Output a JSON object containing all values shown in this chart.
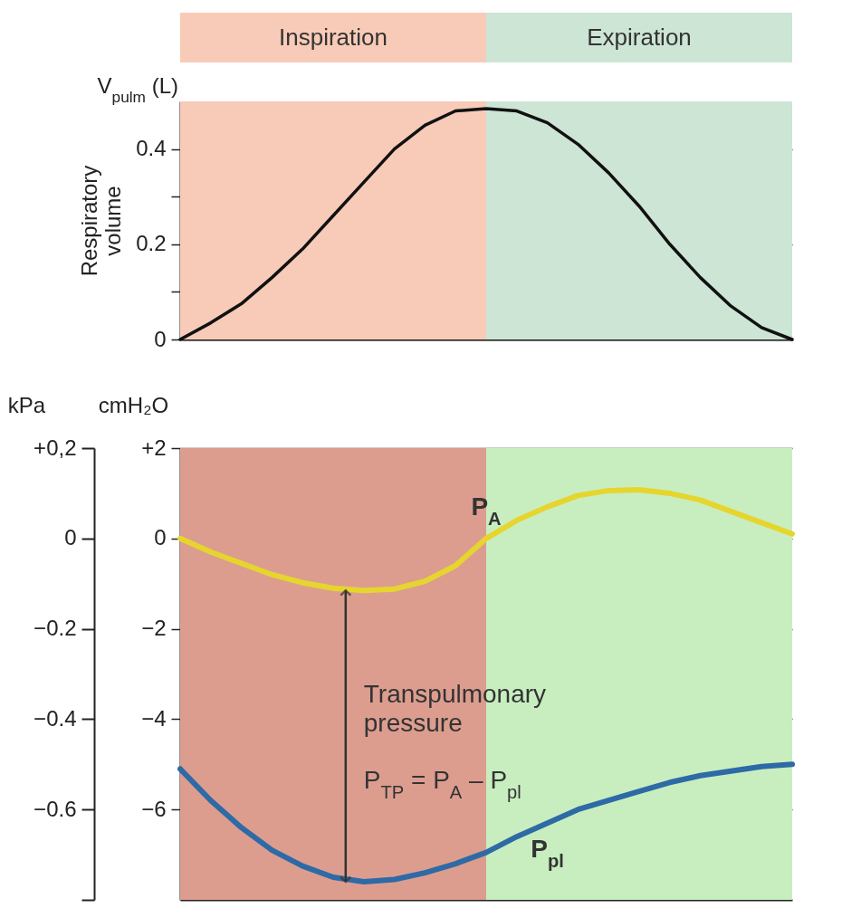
{
  "chart_data": [
    {
      "type": "line",
      "ylabel": "Respiratory volume",
      "categories": [
        null,
        null,
        null,
        null,
        null,
        null,
        null,
        null,
        null,
        null,
        null,
        null,
        null,
        null,
        null,
        null,
        null,
        null,
        null,
        null,
        null
      ],
      "ylim": [
        0,
        0.5
      ],
      "yticks": [
        0,
        {
          "value": 0.1,
          "label": null
        },
        0.2,
        {
          "value": 0.3,
          "label": null
        },
        0.4
      ],
      "series": [
        {
          "color": "#111111",
          "values": [
            0,
            0.035,
            0.075,
            0.13,
            0.19,
            0.26,
            0.33,
            0.4,
            0.45,
            0.48,
            0.485,
            0.48,
            0.455,
            0.41,
            0.35,
            0.28,
            0.2,
            0.13,
            0.07,
            0.025,
            0
          ]
        }
      ],
      "annotations": [
        "Inspiration",
        "Expiration",
        "V$_{pulm}$ (L)"
      ],
      "grid": "y",
      "tick_labels": "y"
    },
    {
      "type": "line",
      "ylabel": "cmH₂O",
      "y2label": "kPa",
      "categories": [
        null,
        null,
        null,
        null,
        null,
        null,
        null,
        null,
        null,
        null,
        null,
        null,
        null,
        null,
        null,
        null,
        null,
        null,
        null,
        null,
        null
      ],
      "ylim": [
        -8,
        2
      ],
      "yticks": [
        {
          "value": 2,
          "label": "+2"
        },
        0,
        {
          "value": -2,
          "label": "−2"
        },
        {
          "value": -4,
          "label": "−4"
        },
        {
          "value": -6,
          "label": "−6"
        }
      ],
      "y2lim": [
        -0.8,
        0.2
      ],
      "y2ticks": [
        {
          "value": 0.2,
          "label": "+0,2"
        },
        0,
        {
          "value": -0.2,
          "label": "−0.2"
        },
        {
          "value": -0.4,
          "label": "−0.4"
        },
        {
          "value": -0.6,
          "label": "−0.6"
        },
        {
          "value": -0.8,
          "label": null
        }
      ],
      "series": [
        {
          "name": "P$_{A}$",
          "color": "#e6d52e",
          "values": [
            0,
            -0.3,
            -0.55,
            -0.8,
            -0.98,
            -1.1,
            -1.15,
            -1.12,
            -0.95,
            -0.6,
            0,
            0.4,
            0.7,
            0.95,
            1.06,
            1.08,
            1.0,
            0.85,
            0.6,
            0.35,
            0.1
          ]
        },
        {
          "name": "P$_{pl}$",
          "color": "#2e6aa6",
          "values": [
            -5.1,
            -5.8,
            -6.4,
            -6.9,
            -7.25,
            -7.5,
            -7.6,
            -7.55,
            -7.4,
            -7.2,
            -6.95,
            -6.6,
            -6.3,
            -6.0,
            -5.8,
            -5.6,
            -5.4,
            -5.25,
            -5.15,
            -5.05,
            -5.0
          ]
        }
      ],
      "annotations": [
        "Transpulmonary pressure",
        "P$_{TP}$ = P$_{A}$ – P$_{pl}$"
      ],
      "grid": "y",
      "tick_labels": "y"
    }
  ]
}
